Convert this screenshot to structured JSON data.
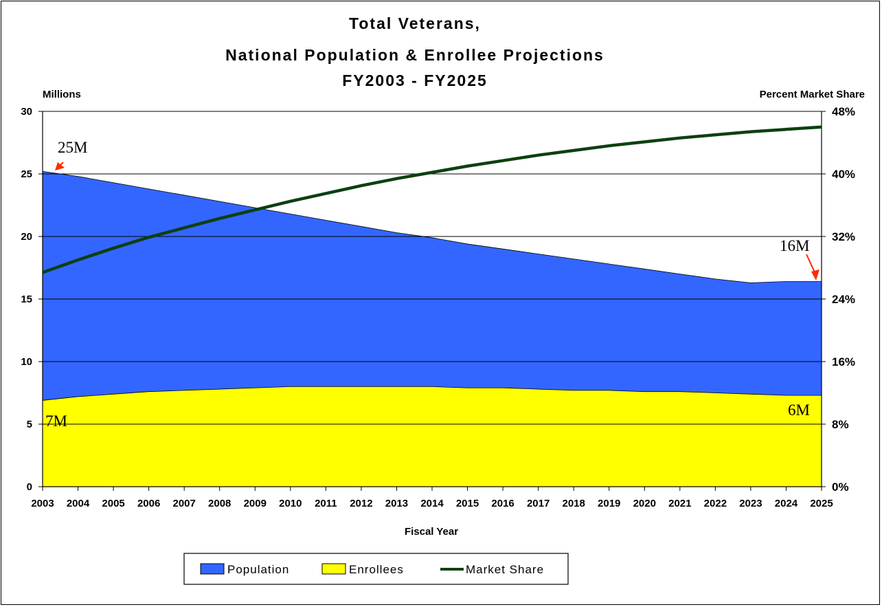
{
  "chart_data": {
    "type": "area",
    "title_lines": [
      "Total Veterans,",
      "National Population & Enrollee Projections",
      "FY2003 - FY2025"
    ],
    "ylabel": "Millions",
    "y2label": "Percent Market Share",
    "xlabel": "Fiscal Year",
    "ylim": [
      0,
      30
    ],
    "y2lim": [
      0,
      48
    ],
    "yticks": [
      "0",
      "5",
      "10",
      "15",
      "20",
      "25",
      "30"
    ],
    "y2ticks": [
      "0%",
      "8%",
      "16%",
      "24%",
      "32%",
      "40%",
      "48%"
    ],
    "categories": [
      "2003",
      "2004",
      "2005",
      "2006",
      "2007",
      "2008",
      "2009",
      "2010",
      "2011",
      "2012",
      "2013",
      "2014",
      "2015",
      "2016",
      "2017",
      "2018",
      "2019",
      "2020",
      "2021",
      "2022",
      "2023",
      "2024",
      "2025"
    ],
    "series": [
      {
        "name": "Population",
        "type": "area",
        "color": "#3366ff",
        "values": [
          25.2,
          24.8,
          24.3,
          23.8,
          23.3,
          22.8,
          22.3,
          21.8,
          21.3,
          20.8,
          20.3,
          19.9,
          19.4,
          19.0,
          18.6,
          18.2,
          17.8,
          17.4,
          17.0,
          16.6,
          16.3,
          16.4,
          16.4
        ]
      },
      {
        "name": "Enrollees",
        "type": "area",
        "color": "#ffff00",
        "values": [
          6.9,
          7.2,
          7.4,
          7.6,
          7.7,
          7.8,
          7.9,
          8.0,
          8.0,
          8.0,
          8.0,
          8.0,
          7.9,
          7.9,
          7.8,
          7.7,
          7.7,
          7.6,
          7.6,
          7.5,
          7.4,
          7.3,
          7.3
        ]
      },
      {
        "name": "Market Share",
        "type": "line",
        "axis": "right",
        "color": "#0d4010",
        "values": [
          27.4,
          29.0,
          30.5,
          31.9,
          33.1,
          34.3,
          35.4,
          36.5,
          37.5,
          38.5,
          39.4,
          40.2,
          41.0,
          41.7,
          42.4,
          43.0,
          43.6,
          44.1,
          44.6,
          45.0,
          45.4,
          45.7,
          46.0
        ]
      }
    ],
    "annotations": [
      "25M",
      "16M",
      "7M",
      "6M"
    ],
    "annotation_arrow_color": "#ff2a00",
    "grid": "horizontal",
    "legend_position": "bottom"
  },
  "legend": [
    {
      "label": "Population",
      "kind": "swatch",
      "color": "#3366ff"
    },
    {
      "label": "Enrollees",
      "kind": "swatch",
      "color": "#ffff00"
    },
    {
      "label": "Market Share",
      "kind": "line",
      "color": "#0d4010"
    }
  ]
}
